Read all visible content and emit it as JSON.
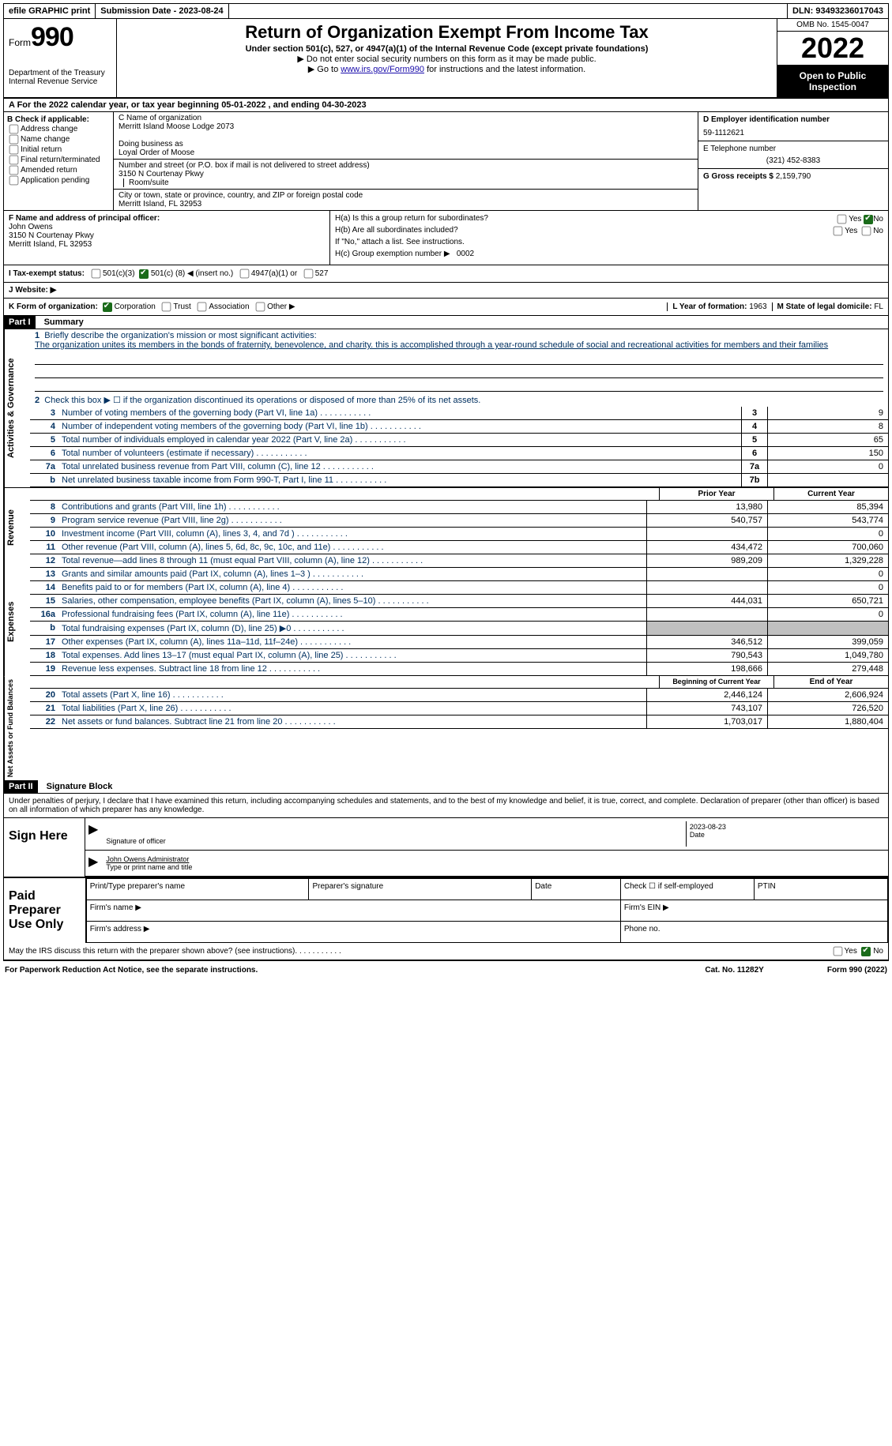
{
  "topbar": {
    "efile": "efile GRAPHIC print",
    "subdate_label": "Submission Date -",
    "subdate": "2023-08-24",
    "dln_label": "DLN:",
    "dln": "93493236017043"
  },
  "header": {
    "form_label": "Form",
    "form_num": "990",
    "dept": "Department of the Treasury",
    "irs": "Internal Revenue Service",
    "title": "Return of Organization Exempt From Income Tax",
    "subtitle": "Under section 501(c), 527, or 4947(a)(1) of the Internal Revenue Code (except private foundations)",
    "note1": "▶ Do not enter social security numbers on this form as it may be made public.",
    "note2_pre": "▶ Go to ",
    "note2_link": "www.irs.gov/Form990",
    "note2_post": " for instructions and the latest information.",
    "omb": "OMB No. 1545-0047",
    "year": "2022",
    "inspect": "Open to Public Inspection"
  },
  "rowA": "A For the 2022 calendar year, or tax year beginning 05-01-2022   , and ending 04-30-2023",
  "boxB": {
    "title": "B Check if applicable:",
    "opts": [
      "Address change",
      "Name change",
      "Initial return",
      "Final return/terminated",
      "Amended return",
      "Application pending"
    ]
  },
  "boxC": {
    "label_name": "C Name of organization",
    "org": "Merritt Island Moose Lodge 2073",
    "dba_label": "Doing business as",
    "dba": "Loyal Order of Moose",
    "street_label": "Number and street (or P.O. box if mail is not delivered to street address)",
    "street": "3150 N Courtenay Pkwy",
    "room_label": "Room/suite",
    "city_label": "City or town, state or province, country, and ZIP or foreign postal code",
    "city": "Merritt Island, FL  32953"
  },
  "boxD": {
    "label": "D Employer identification number",
    "value": "59-1112621"
  },
  "boxE": {
    "label": "E Telephone number",
    "value": "(321) 452-8383"
  },
  "boxG": {
    "label": "G Gross receipts $",
    "value": "2,159,790"
  },
  "boxF": {
    "label": "F Name and address of principal officer:",
    "name": "John Owens",
    "addr1": "3150 N Courtenay Pkwy",
    "addr2": "Merritt Island, FL  32953"
  },
  "boxH": {
    "ha": "H(a)  Is this a group return for subordinates?",
    "hb": "H(b)  Are all subordinates included?",
    "hnote": "If \"No,\" attach a list. See instructions.",
    "hc_label": "H(c)  Group exemption number ▶",
    "hc_val": "0002",
    "ha_no": true
  },
  "rowI": {
    "label": "I   Tax-exempt status:",
    "c3": "501(c)(3)",
    "c_other_pre": "501(c) (",
    "c_other_val": "8",
    "c_other_post": ") ◀ (insert no.)",
    "c4947": "4947(a)(1) or",
    "c527": "527"
  },
  "rowJ": {
    "label": "J   Website: ▶"
  },
  "rowK": {
    "label": "K Form of organization:",
    "corp": "Corporation",
    "trust": "Trust",
    "assoc": "Association",
    "other": "Other ▶",
    "L_label": "L Year of formation:",
    "L_val": "1963",
    "M_label": "M State of legal domicile:",
    "M_val": "FL"
  },
  "partI": {
    "hdr": "Part I",
    "title": "Summary",
    "q1": "Briefly describe the organization's mission or most significant activities:",
    "mission": "The organization unites its members in the bonds of fraternity, benevolence, and charity. this is accomplished through a year-round schedule of social and recreational activities for members and their families",
    "q2": "Check this box ▶ ☐ if the organization discontinued its operations or disposed of more than 25% of its net assets.",
    "rows_gov": [
      {
        "n": "3",
        "d": "Number of voting members of the governing body (Part VI, line 1a)",
        "box": "3",
        "v": "9"
      },
      {
        "n": "4",
        "d": "Number of independent voting members of the governing body (Part VI, line 1b)",
        "box": "4",
        "v": "8"
      },
      {
        "n": "5",
        "d": "Total number of individuals employed in calendar year 2022 (Part V, line 2a)",
        "box": "5",
        "v": "65"
      },
      {
        "n": "6",
        "d": "Total number of volunteers (estimate if necessary)",
        "box": "6",
        "v": "150"
      },
      {
        "n": "7a",
        "d": "Total unrelated business revenue from Part VIII, column (C), line 12",
        "box": "7a",
        "v": "0"
      },
      {
        "n": "b",
        "d": "Net unrelated business taxable income from Form 990-T, Part I, line 11",
        "box": "7b",
        "v": ""
      }
    ],
    "prior_hdr": "Prior Year",
    "curr_hdr": "Current Year",
    "rows_rev": [
      {
        "n": "8",
        "d": "Contributions and grants (Part VIII, line 1h)",
        "p": "13,980",
        "c": "85,394"
      },
      {
        "n": "9",
        "d": "Program service revenue (Part VIII, line 2g)",
        "p": "540,757",
        "c": "543,774"
      },
      {
        "n": "10",
        "d": "Investment income (Part VIII, column (A), lines 3, 4, and 7d )",
        "p": "",
        "c": "0"
      },
      {
        "n": "11",
        "d": "Other revenue (Part VIII, column (A), lines 5, 6d, 8c, 9c, 10c, and 11e)",
        "p": "434,472",
        "c": "700,060"
      },
      {
        "n": "12",
        "d": "Total revenue—add lines 8 through 11 (must equal Part VIII, column (A), line 12)",
        "p": "989,209",
        "c": "1,329,228"
      }
    ],
    "rows_exp": [
      {
        "n": "13",
        "d": "Grants and similar amounts paid (Part IX, column (A), lines 1–3 )",
        "p": "",
        "c": "0"
      },
      {
        "n": "14",
        "d": "Benefits paid to or for members (Part IX, column (A), line 4)",
        "p": "",
        "c": "0"
      },
      {
        "n": "15",
        "d": "Salaries, other compensation, employee benefits (Part IX, column (A), lines 5–10)",
        "p": "444,031",
        "c": "650,721"
      },
      {
        "n": "16a",
        "d": "Professional fundraising fees (Part IX, column (A), line 11e)",
        "p": "",
        "c": "0"
      },
      {
        "n": "b",
        "d": "Total fundraising expenses (Part IX, column (D), line 25) ▶0",
        "p": "GRAY",
        "c": "GRAY"
      },
      {
        "n": "17",
        "d": "Other expenses (Part IX, column (A), lines 11a–11d, 11f–24e)",
        "p": "346,512",
        "c": "399,059"
      },
      {
        "n": "18",
        "d": "Total expenses. Add lines 13–17 (must equal Part IX, column (A), line 25)",
        "p": "790,543",
        "c": "1,049,780"
      },
      {
        "n": "19",
        "d": "Revenue less expenses. Subtract line 18 from line 12",
        "p": "198,666",
        "c": "279,448"
      }
    ],
    "beg_hdr": "Beginning of Current Year",
    "end_hdr": "End of Year",
    "rows_net": [
      {
        "n": "20",
        "d": "Total assets (Part X, line 16)",
        "p": "2,446,124",
        "c": "2,606,924"
      },
      {
        "n": "21",
        "d": "Total liabilities (Part X, line 26)",
        "p": "743,107",
        "c": "726,520"
      },
      {
        "n": "22",
        "d": "Net assets or fund balances. Subtract line 21 from line 20",
        "p": "1,703,017",
        "c": "1,880,404"
      }
    ],
    "tab_gov": "Activities & Governance",
    "tab_rev": "Revenue",
    "tab_exp": "Expenses",
    "tab_net": "Net Assets or Fund Balances"
  },
  "partII": {
    "hdr": "Part II",
    "title": "Signature Block",
    "decl": "Under penalties of perjury, I declare that I have examined this return, including accompanying schedules and statements, and to the best of my knowledge and belief, it is true, correct, and complete. Declaration of preparer (other than officer) is based on all information of which preparer has any knowledge.",
    "sign_here": "Sign Here",
    "sig_officer": "Signature of officer",
    "sig_date": "Date",
    "sig_date_val": "2023-08-23",
    "sig_name": "John Owens  Administrator",
    "sig_name_label": "Type or print name and title",
    "paid": "Paid Preparer Use Only",
    "prep_name": "Print/Type preparer's name",
    "prep_sig": "Preparer's signature",
    "prep_date": "Date",
    "prep_self": "Check ☐ if self-employed",
    "prep_ptin": "PTIN",
    "firm_name": "Firm's name    ▶",
    "firm_ein": "Firm's EIN ▶",
    "firm_addr": "Firm's address ▶",
    "firm_phone": "Phone no.",
    "discuss": "May the IRS discuss this return with the preparer shown above? (see instructions)",
    "yes": "Yes",
    "no": "No"
  },
  "footer": {
    "paperwork": "For Paperwork Reduction Act Notice, see the separate instructions.",
    "cat": "Cat. No. 11282Y",
    "form": "Form 990 (2022)"
  }
}
